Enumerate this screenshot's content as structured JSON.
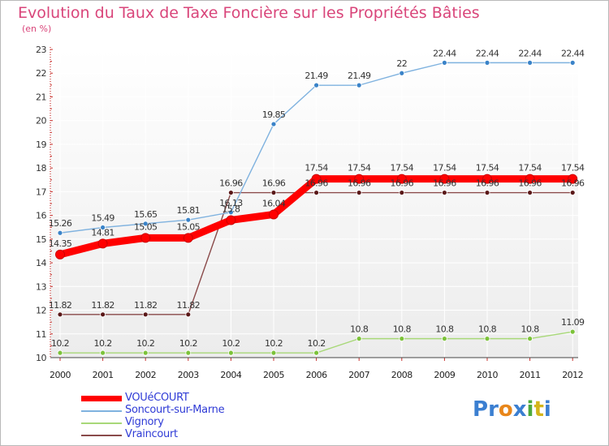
{
  "title": "Evolution du Taux de Taxe Foncière sur les Propriétés Bâties",
  "unit_label": "(en %)",
  "logo": {
    "text": "Proxiti",
    "letters": [
      "P",
      "r",
      "o",
      "x",
      "i",
      "t",
      "i"
    ],
    "colors": [
      "#3b7fd1",
      "#3b7fd1",
      "#e8861a",
      "#3b7fd1",
      "#4daa3c",
      "#d4b51a",
      "#3b7fd1"
    ]
  },
  "chart_data": {
    "type": "line",
    "title": "Evolution du Taux de Taxe Foncière sur les Propriétés Bâties",
    "ylabel": "(en %)",
    "xlabel": "",
    "ylim": [
      10,
      23
    ],
    "yticks": [
      10,
      11,
      12,
      13,
      14,
      15,
      16,
      17,
      18,
      19,
      20,
      21,
      22,
      23
    ],
    "categories": [
      "2000",
      "2001",
      "2002",
      "2003",
      "2004",
      "2005",
      "2006",
      "2007",
      "2008",
      "2009",
      "2010",
      "2011",
      "2012"
    ],
    "grid": true,
    "series": [
      {
        "name": "VOUéCOURT",
        "color": "#ff0000",
        "marker": "#e00000",
        "width": "thick",
        "values": [
          14.35,
          14.81,
          15.05,
          15.05,
          15.8,
          16.04,
          17.54,
          17.54,
          17.54,
          17.54,
          17.54,
          17.54,
          17.54
        ],
        "labels": [
          "14.35",
          "14.81",
          "15.05",
          "15.05",
          "15.8",
          "16.04",
          "17.54",
          "17.54",
          "17.54",
          "17.54",
          "17.54",
          "17.54",
          "17.54"
        ]
      },
      {
        "name": "Soncourt-sur-Marne",
        "color": "#7fb2df",
        "marker": "#3a83c8",
        "width": "thin",
        "values": [
          15.26,
          15.49,
          15.65,
          15.81,
          16.13,
          19.85,
          21.49,
          21.49,
          22,
          22.44,
          22.44,
          22.44,
          22.44
        ],
        "labels": [
          "15.26",
          "15.49",
          "15.65",
          "15.81",
          "16.13",
          "19.85",
          "21.49",
          "21.49",
          "22",
          "22.44",
          "22.44",
          "22.44",
          "22.44"
        ]
      },
      {
        "name": "Vignory",
        "color": "#a8d878",
        "marker": "#7cc23a",
        "width": "thin",
        "values": [
          10.2,
          10.2,
          10.2,
          10.2,
          10.2,
          10.2,
          10.2,
          10.8,
          10.8,
          10.8,
          10.8,
          10.8,
          11.09
        ],
        "labels": [
          "10.2",
          "10.2",
          "10.2",
          "10.2",
          "10.2",
          "10.2",
          "10.2",
          "10.8",
          "10.8",
          "10.8",
          "10.8",
          "10.8",
          "11.09"
        ]
      },
      {
        "name": "Vraincourt",
        "color": "#8a4a4a",
        "marker": "#5a1818",
        "width": "thin",
        "values": [
          11.82,
          11.82,
          11.82,
          11.82,
          16.96,
          16.96,
          16.96,
          16.96,
          16.96,
          16.96,
          16.96,
          16.96,
          16.96
        ],
        "labels": [
          "11.82",
          "11.82",
          "11.82",
          "11.82",
          "16.96",
          "16.96",
          "16.96",
          "16.96",
          "16.96",
          "16.96",
          "16.96",
          "16.96",
          "16.96"
        ]
      }
    ]
  }
}
